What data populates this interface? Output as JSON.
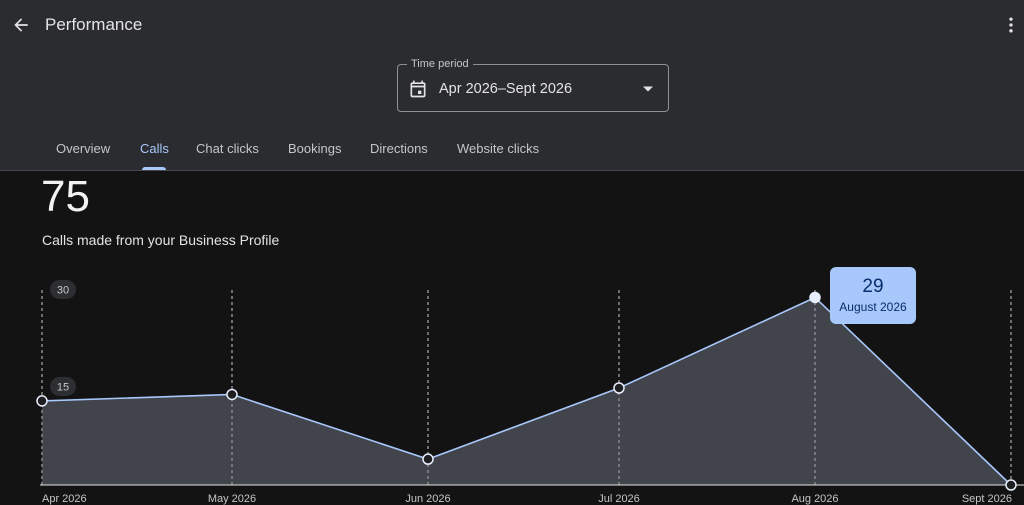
{
  "header": {
    "title": "Performance",
    "back_icon": "arrow-back-icon",
    "more_icon": "more-vert-icon"
  },
  "time_period": {
    "label": "Time period",
    "value": "Apr 2026–Sept 2026",
    "icon": "calendar-icon"
  },
  "tabs": [
    {
      "label": "Overview",
      "active": false
    },
    {
      "label": "Calls",
      "active": true
    },
    {
      "label": "Chat clicks",
      "active": false
    },
    {
      "label": "Bookings",
      "active": false
    },
    {
      "label": "Directions",
      "active": false
    },
    {
      "label": "Website clicks",
      "active": false
    }
  ],
  "summary": {
    "total": "75",
    "description": "Calls made from your Business Profile"
  },
  "tooltip": {
    "value": "29",
    "date": "August 2026"
  },
  "colors": {
    "header_bg": "#2b2c30",
    "body_bg": "#131314",
    "accent": "#a8c7fa",
    "area_fill": "#44474e"
  },
  "chart_data": {
    "type": "area",
    "categories": [
      "Apr 2026",
      "May 2026",
      "Jun 2026",
      "Jul 2026",
      "Aug 2026",
      "Sept 2026"
    ],
    "values": [
      13,
      14,
      4,
      15,
      29,
      0
    ],
    "yticks": [
      "15",
      "30"
    ],
    "ylim": [
      0,
      30
    ],
    "grid": "vertical-dashed",
    "highlight_index": 4
  }
}
